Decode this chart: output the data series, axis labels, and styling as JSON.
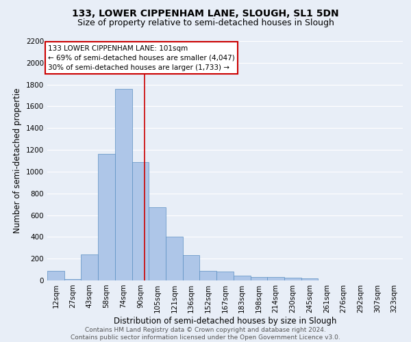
{
  "title_line1": "133, LOWER CIPPENHAM LANE, SLOUGH, SL1 5DN",
  "title_line2": "Size of property relative to semi-detached houses in Slough",
  "xlabel": "Distribution of semi-detached houses by size in Slough",
  "ylabel": "Number of semi-detached propertie",
  "bar_labels": [
    "12sqm",
    "27sqm",
    "43sqm",
    "58sqm",
    "74sqm",
    "90sqm",
    "105sqm",
    "121sqm",
    "136sqm",
    "152sqm",
    "167sqm",
    "183sqm",
    "198sqm",
    "214sqm",
    "230sqm",
    "245sqm",
    "261sqm",
    "276sqm",
    "292sqm",
    "307sqm",
    "323sqm"
  ],
  "bar_values": [
    90,
    10,
    240,
    1160,
    1760,
    1090,
    670,
    400,
    230,
    85,
    80,
    45,
    30,
    30,
    25,
    20,
    0,
    0,
    0,
    0,
    0
  ],
  "bar_color": "#aec6e8",
  "bar_edge_color": "#5a8fc2",
  "background_color": "#e8eef7",
  "grid_color": "#ffffff",
  "annotation_line1": "133 LOWER CIPPENHAM LANE: 101sqm",
  "annotation_line2": "← 69% of semi-detached houses are smaller (4,047)",
  "annotation_line3": "30% of semi-detached houses are larger (1,733) →",
  "annotation_box_color": "#ffffff",
  "annotation_box_edge_color": "#cc0000",
  "vline_x": 5.73,
  "vline_color": "#cc0000",
  "ylim": [
    0,
    2200
  ],
  "yticks": [
    0,
    200,
    400,
    600,
    800,
    1000,
    1200,
    1400,
    1600,
    1800,
    2000,
    2200
  ],
  "footnote": "Contains HM Land Registry data © Crown copyright and database right 2024.\nContains public sector information licensed under the Open Government Licence v3.0.",
  "title_fontsize": 10,
  "subtitle_fontsize": 9,
  "axis_label_fontsize": 8.5,
  "tick_fontsize": 7.5,
  "annotation_fontsize": 7.5,
  "footnote_fontsize": 6.5
}
